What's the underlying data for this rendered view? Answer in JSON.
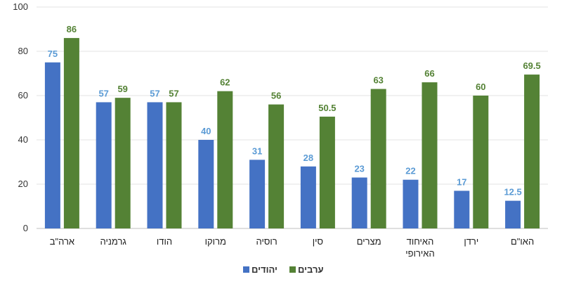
{
  "chart_data": {
    "type": "bar",
    "categories": [
      "ארה\"ב",
      "גרמניה",
      "הודו",
      "מרוקו",
      "רוסיה",
      "סין",
      "מצרים",
      "האיחוד האירופי",
      "ירדן",
      "האו\"ם"
    ],
    "category_lines": [
      [
        "ארה\"ב"
      ],
      [
        "גרמניה"
      ],
      [
        "הודו"
      ],
      [
        "מרוקו"
      ],
      [
        "רוסיה"
      ],
      [
        "סין"
      ],
      [
        "מצרים"
      ],
      [
        "האיחוד",
        "האירופי"
      ],
      [
        "ירדן"
      ],
      [
        "האו\"ם"
      ]
    ],
    "series": [
      {
        "name": "יהודים",
        "color": "#4472C4",
        "label_color": "#5B9BD5",
        "values": [
          75,
          57,
          57,
          40,
          31,
          28,
          23,
          22,
          17,
          12.5
        ]
      },
      {
        "name": "ערבים",
        "color": "#548235",
        "label_color": "#548235",
        "values": [
          86,
          59,
          57,
          62,
          56,
          50.5,
          63,
          66,
          60,
          69.5
        ]
      }
    ],
    "ylim": [
      0,
      100
    ],
    "yticks": [
      0,
      20,
      40,
      60,
      80,
      100
    ],
    "grid": true,
    "legend_position": "bottom",
    "title": "",
    "xlabel": "",
    "ylabel": ""
  }
}
